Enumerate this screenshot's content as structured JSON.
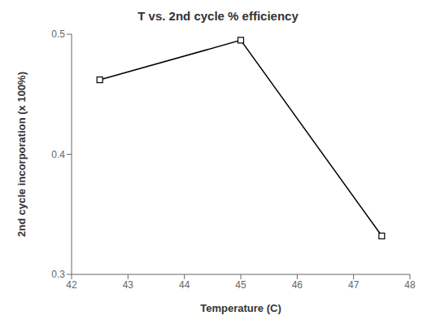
{
  "chart_data": {
    "type": "line",
    "title": "T vs. 2nd cycle % efficiency",
    "xlabel": "Temperature (C)",
    "ylabel": "2nd cycle incorporation (x 100%)",
    "x": [
      42.5,
      45.0,
      47.5
    ],
    "values": [
      0.462,
      0.495,
      0.332
    ],
    "xlim": [
      42,
      48
    ],
    "ylim": [
      0.3,
      0.5
    ],
    "xticks": [
      42,
      43,
      44,
      45,
      46,
      47,
      48
    ],
    "yticks": [
      0.3,
      0.4,
      0.5
    ],
    "color": "#000000",
    "marker": "square",
    "grid": false
  }
}
